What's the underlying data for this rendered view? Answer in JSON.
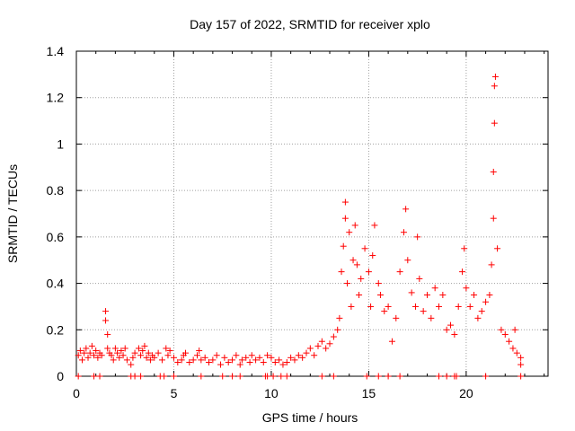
{
  "chart_data": {
    "type": "scatter",
    "title": "Day 157 of 2022, SRMTID for receiver xplo",
    "xlabel": "GPS time / hours",
    "ylabel": "SRMTID / TECUs",
    "xlim": [
      0,
      24.2
    ],
    "ylim": [
      0,
      1.4
    ],
    "grid": true,
    "x_ticks": [
      0,
      5,
      10,
      15,
      20
    ],
    "x_tick_labels": [
      "0",
      "5",
      "10",
      "15",
      "20"
    ],
    "y_ticks": [
      0,
      0.2,
      0.4,
      0.6,
      0.8,
      1.0,
      1.2,
      1.4
    ],
    "y_tick_labels": [
      "0",
      "0.2",
      "0.4",
      "0.6",
      "0.8",
      "1",
      "1.2",
      "1.4"
    ],
    "marker": "plus",
    "color": "#ff0000",
    "series": [
      {
        "name": "SRMTID",
        "points": [
          [
            0.1,
            0.09
          ],
          [
            0.2,
            0.11
          ],
          [
            0.3,
            0.07
          ],
          [
            0.4,
            0.1
          ],
          [
            0.5,
            0.12
          ],
          [
            0.6,
            0.08
          ],
          [
            0.7,
            0.1
          ],
          [
            0.8,
            0.13
          ],
          [
            0.9,
            0.09
          ],
          [
            1.0,
            0.11
          ],
          [
            1.1,
            0.08
          ],
          [
            1.2,
            0.1
          ],
          [
            1.3,
            0.09
          ],
          [
            1.5,
            0.28
          ],
          [
            1.5,
            0.24
          ],
          [
            1.6,
            0.18
          ],
          [
            1.6,
            0.12
          ],
          [
            1.7,
            0.1
          ],
          [
            1.8,
            0.09
          ],
          [
            1.9,
            0.07
          ],
          [
            2.0,
            0.12
          ],
          [
            2.1,
            0.1
          ],
          [
            2.2,
            0.08
          ],
          [
            2.3,
            0.11
          ],
          [
            2.4,
            0.09
          ],
          [
            2.5,
            0.12
          ],
          [
            2.6,
            0.07
          ],
          [
            2.8,
            0.05
          ],
          [
            2.9,
            0.08
          ],
          [
            3.0,
            0.1
          ],
          [
            3.2,
            0.12
          ],
          [
            3.3,
            0.09
          ],
          [
            3.4,
            0.11
          ],
          [
            3.5,
            0.13
          ],
          [
            3.6,
            0.08
          ],
          [
            3.7,
            0.1
          ],
          [
            3.8,
            0.07
          ],
          [
            3.9,
            0.09
          ],
          [
            4.0,
            0.08
          ],
          [
            4.2,
            0.1
          ],
          [
            4.4,
            0.07
          ],
          [
            4.6,
            0.12
          ],
          [
            4.7,
            0.09
          ],
          [
            4.8,
            0.11
          ],
          [
            5.0,
            0.08
          ],
          [
            5.2,
            0.06
          ],
          [
            5.4,
            0.07
          ],
          [
            5.5,
            0.09
          ],
          [
            5.6,
            0.1
          ],
          [
            5.8,
            0.06
          ],
          [
            6.0,
            0.07
          ],
          [
            6.2,
            0.09
          ],
          [
            6.3,
            0.11
          ],
          [
            6.4,
            0.07
          ],
          [
            6.6,
            0.08
          ],
          [
            6.8,
            0.06
          ],
          [
            7.0,
            0.07
          ],
          [
            7.2,
            0.09
          ],
          [
            7.4,
            0.05
          ],
          [
            7.6,
            0.08
          ],
          [
            7.8,
            0.06
          ],
          [
            8.0,
            0.07
          ],
          [
            8.2,
            0.09
          ],
          [
            8.4,
            0.05
          ],
          [
            8.5,
            0.07
          ],
          [
            8.7,
            0.08
          ],
          [
            8.9,
            0.06
          ],
          [
            9.0,
            0.09
          ],
          [
            9.2,
            0.07
          ],
          [
            9.4,
            0.08
          ],
          [
            9.6,
            0.06
          ],
          [
            9.8,
            0.09
          ],
          [
            10.0,
            0.08
          ],
          [
            10.2,
            0.06
          ],
          [
            10.4,
            0.07
          ],
          [
            10.6,
            0.05
          ],
          [
            10.8,
            0.06
          ],
          [
            11.0,
            0.08
          ],
          [
            11.2,
            0.07
          ],
          [
            11.4,
            0.09
          ],
          [
            11.6,
            0.08
          ],
          [
            11.8,
            0.1
          ],
          [
            12.0,
            0.12
          ],
          [
            12.2,
            0.09
          ],
          [
            12.4,
            0.13
          ],
          [
            12.6,
            0.15
          ],
          [
            12.8,
            0.12
          ],
          [
            13.0,
            0.14
          ],
          [
            13.2,
            0.17
          ],
          [
            13.4,
            0.2
          ],
          [
            13.5,
            0.25
          ],
          [
            13.6,
            0.45
          ],
          [
            13.7,
            0.56
          ],
          [
            13.8,
            0.75
          ],
          [
            13.8,
            0.68
          ],
          [
            13.9,
            0.4
          ],
          [
            14.0,
            0.62
          ],
          [
            14.1,
            0.3
          ],
          [
            14.2,
            0.5
          ],
          [
            14.3,
            0.65
          ],
          [
            14.4,
            0.48
          ],
          [
            14.5,
            0.35
          ],
          [
            14.6,
            0.42
          ],
          [
            14.8,
            0.55
          ],
          [
            15.0,
            0.45
          ],
          [
            15.1,
            0.3
          ],
          [
            15.2,
            0.52
          ],
          [
            15.3,
            0.65
          ],
          [
            15.5,
            0.4
          ],
          [
            15.6,
            0.35
          ],
          [
            15.8,
            0.28
          ],
          [
            16.0,
            0.3
          ],
          [
            16.2,
            0.15
          ],
          [
            16.4,
            0.25
          ],
          [
            16.6,
            0.45
          ],
          [
            16.8,
            0.62
          ],
          [
            16.9,
            0.72
          ],
          [
            17.0,
            0.5
          ],
          [
            17.2,
            0.36
          ],
          [
            17.4,
            0.3
          ],
          [
            17.5,
            0.6
          ],
          [
            17.6,
            0.42
          ],
          [
            17.8,
            0.28
          ],
          [
            18.0,
            0.35
          ],
          [
            18.2,
            0.25
          ],
          [
            18.4,
            0.38
          ],
          [
            18.6,
            0.3
          ],
          [
            18.8,
            0.35
          ],
          [
            19.0,
            0.2
          ],
          [
            19.2,
            0.22
          ],
          [
            19.4,
            0.18
          ],
          [
            19.6,
            0.3
          ],
          [
            19.8,
            0.45
          ],
          [
            19.9,
            0.55
          ],
          [
            20.0,
            0.38
          ],
          [
            20.2,
            0.3
          ],
          [
            20.4,
            0.35
          ],
          [
            20.6,
            0.25
          ],
          [
            20.8,
            0.28
          ],
          [
            21.0,
            0.32
          ],
          [
            21.2,
            0.35
          ],
          [
            21.3,
            0.48
          ],
          [
            21.4,
            0.68
          ],
          [
            21.4,
            0.88
          ],
          [
            21.45,
            1.09
          ],
          [
            21.45,
            1.25
          ],
          [
            21.5,
            1.29
          ],
          [
            21.6,
            0.55
          ],
          [
            21.8,
            0.2
          ],
          [
            22.0,
            0.18
          ],
          [
            22.2,
            0.15
          ],
          [
            22.4,
            0.12
          ],
          [
            22.5,
            0.2
          ],
          [
            22.6,
            0.1
          ],
          [
            22.8,
            0.08
          ],
          [
            22.8,
            0.05
          ]
        ],
        "zero_points": [
          0.1,
          0.9,
          1.2,
          2.8,
          3.0,
          3.3,
          4.3,
          4.5,
          5.0,
          6.4,
          7.5,
          8.0,
          8.4,
          9.7,
          9.8,
          10.1,
          10.5,
          10.8,
          12.6,
          13.2,
          14.9,
          15.5,
          16.0,
          16.6,
          18.6,
          19.0,
          19.4,
          19.5,
          21.0,
          22.8
        ]
      }
    ]
  }
}
